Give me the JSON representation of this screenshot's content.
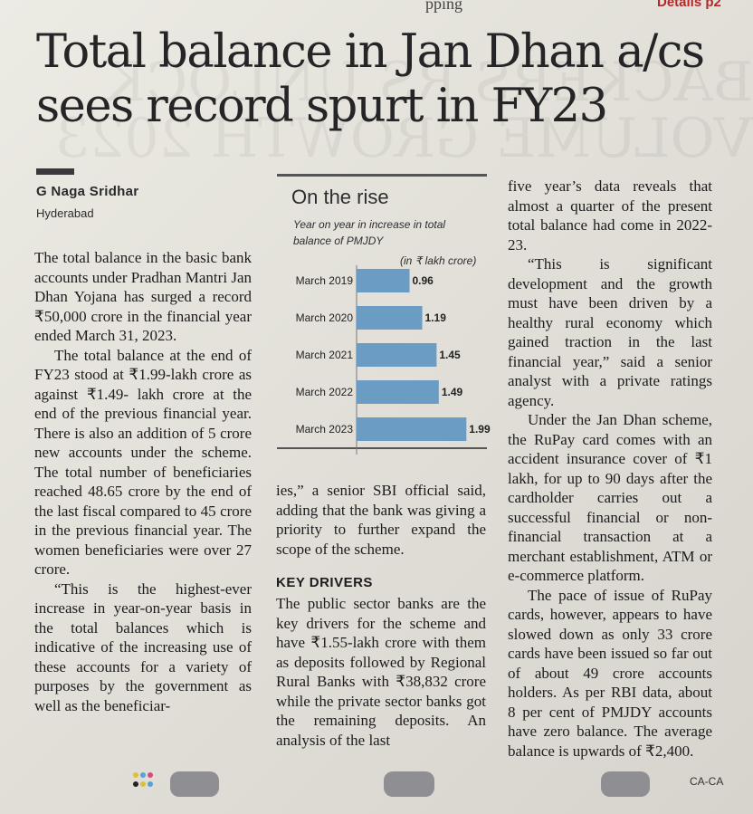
{
  "masthead": {
    "fragment": "pping",
    "ref": "Details p2"
  },
  "article": {
    "headline": "Total balance in Jan Dhan a/cs sees record spurt in FY23",
    "byline": "G Naga Sridhar",
    "dateline": "Hyderabad",
    "col1": [
      "The total balance in the basic bank accounts under Pradhan Mantri Jan Dhan Yojana has surged a record ₹50,000 crore in the financial year ended March 31, 2023.",
      "The total balance at the end of FY23 stood at ₹1.99-lakh crore as against ₹1.49- lakh crore at the end of the previous financial year. There is also an addition of 5 crore new accounts under the scheme. The total number of beneficiaries reached 48.65 crore by the end of the last fiscal compared to 45 crore in the previous financial year. The women beneficiaries were over 27 crore.",
      "“This is the highest-ever increase in year-on-year basis in the total balances which is indicative of the increasing use of these accounts for a variety of purposes by the government as well as the beneficiar-"
    ],
    "col2_continuation": "ies,” a senior SBI official said, adding that the bank was giving a priority to further expand the scope of the scheme.",
    "subhead": "KEY DRIVERS",
    "col2_after": "The public sector banks are the key drivers for the scheme and have ₹1.55-lakh crore with them as deposits followed by Regional Rural Banks with ₹38,832 crore while the private sector banks got the remaining deposits. An analysis of the last",
    "col3": [
      "five year’s data reveals that almost a quarter of the present total balance had come in 2022-23.",
      "“This is significant development and the growth must have been driven by a healthy rural economy which gained traction in the last financial year,” said a senior analyst with a private ratings agency.",
      "Under the Jan Dhan scheme, the RuPay card comes with an accident insurance cover of ₹1 lakh, for up to 90 days after the cardholder carries out a successful financial or non-financial transaction at a merchant establishment, ATM or e-commerce platform.",
      "The pace of issue of RuPay cards, however, appears to have slowed down as only 33 crore cards have been issued so far out of about 49 crore accounts holders. As per RBI data, about 8 per cent of PMJDY accounts have zero balance. The average balance is upwards of ₹2,400."
    ]
  },
  "chart_data": {
    "type": "bar",
    "title": "On the rise",
    "subtitle": "Year on year in increase in total balance of PMJDY",
    "unit": "(in ₹ lakh crore)",
    "categories": [
      "March 2019",
      "March 2020",
      "March 2021",
      "March 2022",
      "March 2023"
    ],
    "values": [
      0.96,
      1.19,
      1.45,
      1.49,
      1.99
    ],
    "value_labels": [
      "0.96",
      "1.19",
      "1.45",
      "1.49",
      "1.99"
    ],
    "xlim": [
      0,
      2.1
    ],
    "orientation": "horizontal",
    "bar_color": "#6a9cc4"
  },
  "footer": {
    "code": "CA-CA"
  }
}
